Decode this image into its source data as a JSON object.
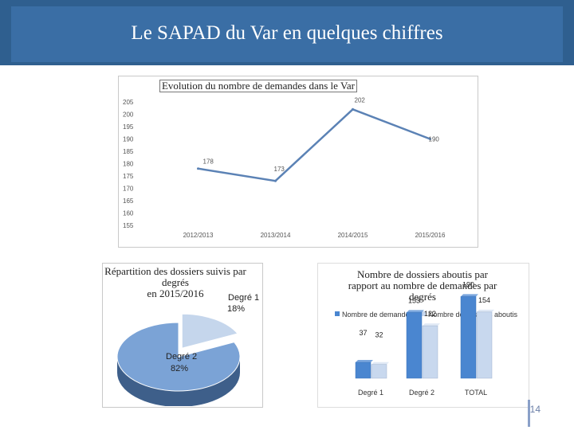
{
  "header": {
    "title": "Le SAPAD du Var en quelques chiffres"
  },
  "page_number": "14",
  "chart_data": [
    {
      "type": "line",
      "title": "Evolution du nombre de demandes dans le Var",
      "categories": [
        "2012/2013",
        "2013/2014",
        "2014/2015",
        "2015/2016"
      ],
      "values": [
        178,
        173,
        202,
        190
      ],
      "ylim": [
        155,
        205
      ],
      "yticks": [
        205,
        200,
        195,
        190,
        185,
        180,
        175,
        170,
        165,
        160,
        155
      ],
      "grid": false,
      "color": "#5b82b5"
    },
    {
      "type": "pie",
      "title_lines": [
        "Répartition des dossiers suivis par",
        "degrés",
        "en 2015/2016"
      ],
      "slices": [
        {
          "label": "Degré 2",
          "value": 82,
          "value_label": "82%",
          "color": "#7ba3d6"
        },
        {
          "label": "Degré 1",
          "value": 18,
          "value_label": "18%",
          "color": "#c5d6ec"
        }
      ]
    },
    {
      "type": "bar",
      "title_lines": [
        "Nombre de dossiers aboutis par",
        "rapport au nombre de demandes par",
        "degrés"
      ],
      "categories": [
        "Degré 1",
        "Degré 2",
        "TOTAL"
      ],
      "series": [
        {
          "name": "Nombre de demandes",
          "values": [
            37,
            153,
            190
          ],
          "color": "#4a86d0"
        },
        {
          "name": "Nombre de dossiers aboutis",
          "values": [
            32,
            122,
            154
          ],
          "color": "#c8d8ee"
        }
      ],
      "legend": "top"
    }
  ]
}
